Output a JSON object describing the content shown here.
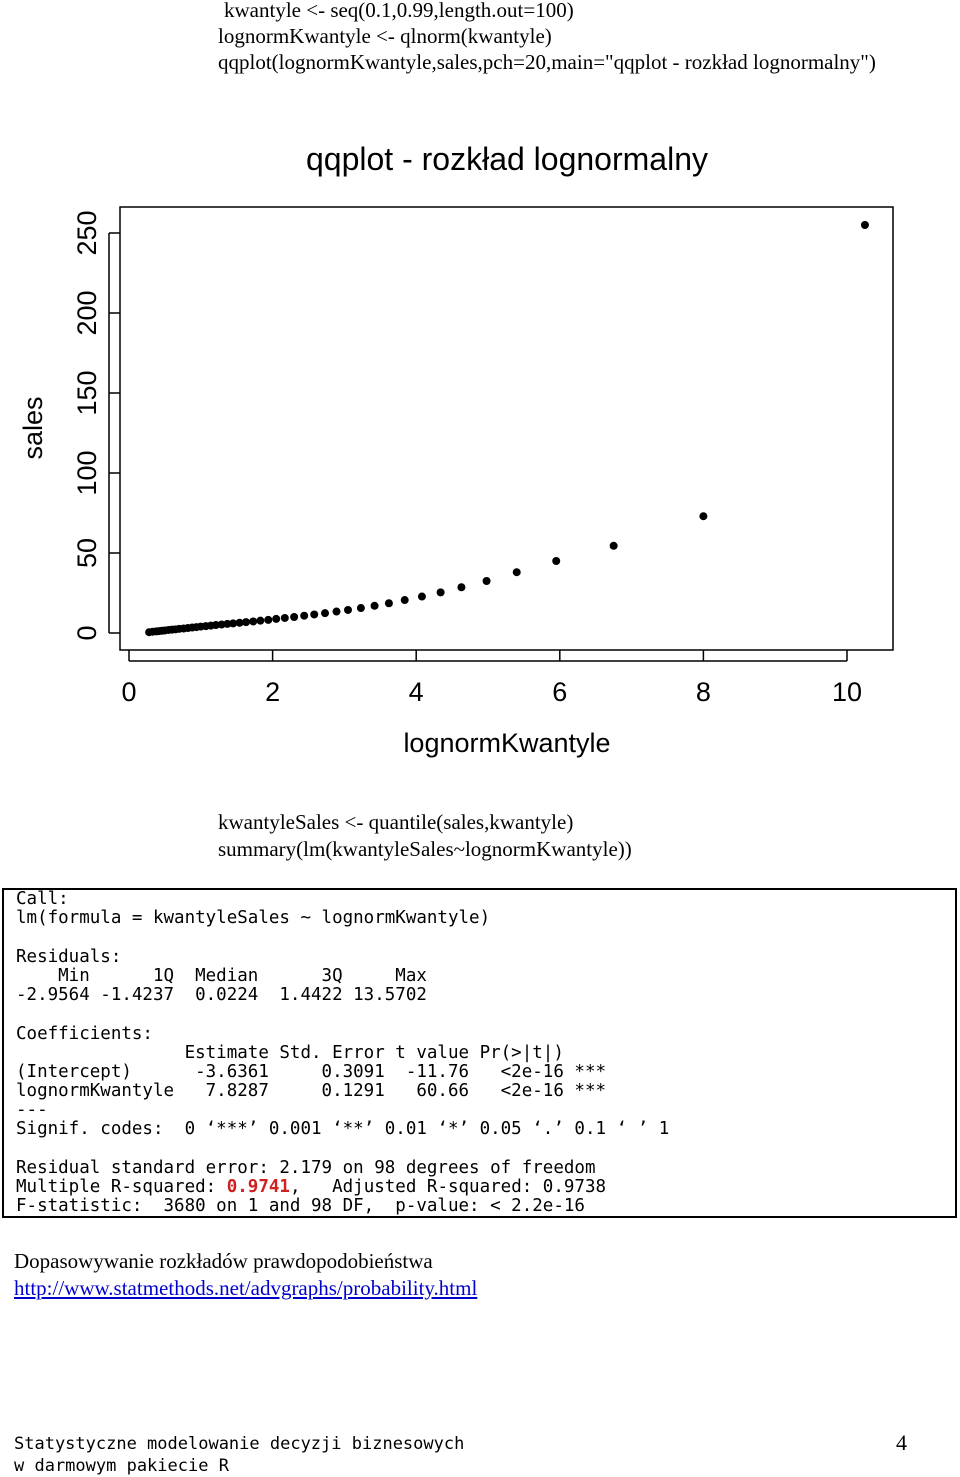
{
  "code_top": [
    "kwantyle <- seq(0.1,0.99,length.out=100)",
    "lognormKwantyle <- qlnorm(kwantyle)",
    "qqplot(lognormKwantyle,sales,pch=20,main=\"qqplot - rozkład lognormalny\")"
  ],
  "chart_data": {
    "type": "scatter",
    "title": "qqplot - rozkład lognormalny",
    "xlabel": "lognormKwantyle",
    "ylabel": "sales",
    "xlim": [
      0,
      10.5
    ],
    "ylim": [
      0,
      260
    ],
    "xticks": [
      "0",
      "2",
      "4",
      "6",
      "8",
      "10"
    ],
    "yticks": [
      "0",
      "50",
      "100",
      "150",
      "200",
      "250"
    ],
    "points": [
      [
        0.28,
        0.5
      ],
      [
        0.33,
        0.8
      ],
      [
        0.38,
        1.0
      ],
      [
        0.42,
        1.2
      ],
      [
        0.46,
        1.4
      ],
      [
        0.5,
        1.6
      ],
      [
        0.55,
        1.9
      ],
      [
        0.6,
        2.1
      ],
      [
        0.65,
        2.3
      ],
      [
        0.7,
        2.6
      ],
      [
        0.76,
        2.8
      ],
      [
        0.82,
        3.1
      ],
      [
        0.88,
        3.4
      ],
      [
        0.94,
        3.7
      ],
      [
        1.0,
        4.0
      ],
      [
        1.07,
        4.3
      ],
      [
        1.14,
        4.6
      ],
      [
        1.21,
        5.0
      ],
      [
        1.29,
        5.3
      ],
      [
        1.37,
        5.7
      ],
      [
        1.45,
        6.0
      ],
      [
        1.54,
        6.4
      ],
      [
        1.63,
        6.8
      ],
      [
        1.73,
        7.2
      ],
      [
        1.83,
        7.7
      ],
      [
        1.94,
        8.2
      ],
      [
        2.05,
        8.8
      ],
      [
        2.17,
        9.4
      ],
      [
        2.3,
        10.0
      ],
      [
        2.44,
        10.8
      ],
      [
        2.58,
        11.6
      ],
      [
        2.73,
        12.4
      ],
      [
        2.89,
        13.4
      ],
      [
        3.05,
        14.4
      ],
      [
        3.23,
        15.6
      ],
      [
        3.42,
        17.0
      ],
      [
        3.62,
        18.6
      ],
      [
        3.84,
        20.6
      ],
      [
        4.08,
        22.8
      ],
      [
        4.34,
        25.4
      ],
      [
        4.63,
        28.6
      ],
      [
        4.98,
        32.5
      ],
      [
        5.4,
        38.0
      ],
      [
        5.95,
        45.0
      ],
      [
        6.75,
        54.5
      ],
      [
        8.0,
        73.0
      ],
      [
        10.25,
        255.0
      ]
    ]
  },
  "code_middle": [
    "kwantyleSales <- quantile(sales,kwantyle)",
    "summary(lm(kwantyleSales~lognormKwantyle))"
  ],
  "output": {
    "line1": "Call:",
    "line2": "lm(formula = kwantyleSales ~ lognormKwantyle)",
    "line3": "Residuals:",
    "line4": "    Min      1Q  Median      3Q     Max",
    "line5": "-2.9564 -1.4237  0.0224  1.4422 13.5702",
    "line6": "Coefficients:",
    "line7": "                Estimate Std. Error t value Pr(>|t|)",
    "line8": "(Intercept)      -3.6361     0.3091  -11.76   <2e-16 ***",
    "line9": "lognormKwantyle   7.8287     0.1291   60.66   <2e-16 ***",
    "line10": "---",
    "line11": "Signif. codes:  0 ‘***’ 0.001 ‘**’ 0.01 ‘*’ 0.05 ‘.’ 0.1 ‘ ’ 1",
    "line12": "Residual standard error: 2.179 on 98 degrees of freedom",
    "line13_pre": "Multiple R-squared: ",
    "line13_value": "0.9741",
    "line13_post": ",   Adjusted R-squared: 0.9738",
    "line14": "F-statistic:  3680 on 1 and 98 DF,  p-value: < 2.2e-16",
    "highlight_color": "#d21f1f"
  },
  "bottom": {
    "heading": "Dopasowywanie rozkładów prawdopodobieństwa",
    "link": "http://www.statmethods.net/advgraphs/probability.html"
  },
  "footer": {
    "line1": "Statystyczne modelowanie decyzji biznesowych",
    "line2": "w darmowym pakiecie R",
    "page_number": "4"
  }
}
